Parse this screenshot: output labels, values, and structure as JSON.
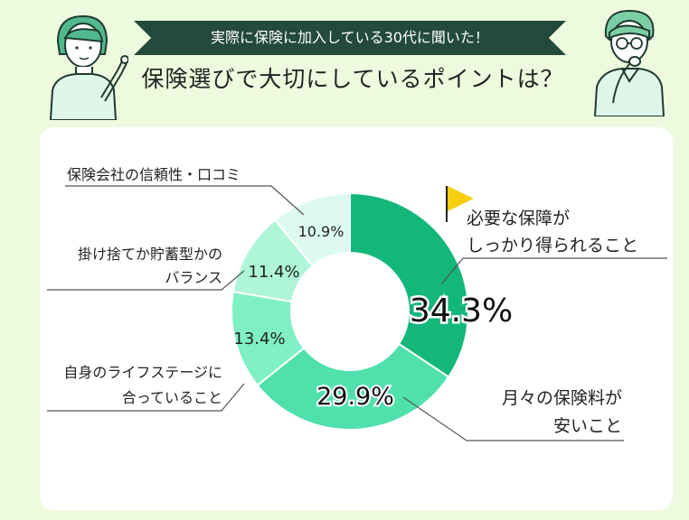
{
  "header": {
    "banner": "実際に保険に加入している30代に聞いた！",
    "title": "保険選びで大切にしているポイントは？"
  },
  "colors": {
    "background": "#eefadd",
    "banner": "#234a3b",
    "slices": [
      "#13b77c",
      "#4fe0ac",
      "#7ff0c6",
      "#aef5d9",
      "#dcfbee"
    ]
  },
  "chart_data": {
    "type": "pie",
    "values": [
      34.3,
      29.9,
      13.4,
      11.4,
      10.9
    ],
    "value_labels": [
      "34.3%",
      "29.9%",
      "13.4%",
      "11.4%",
      "10.9%"
    ],
    "categories": [
      [
        "必要な保障が",
        "しっかり得られること"
      ],
      [
        "月々の保険料が",
        "安いこと"
      ],
      [
        "自身のライフステージに",
        "合っていること"
      ],
      [
        "掛け捨てか貯蓄型かの",
        "バランス"
      ],
      [
        "保険会社の信頼性・口コミ"
      ]
    ]
  }
}
